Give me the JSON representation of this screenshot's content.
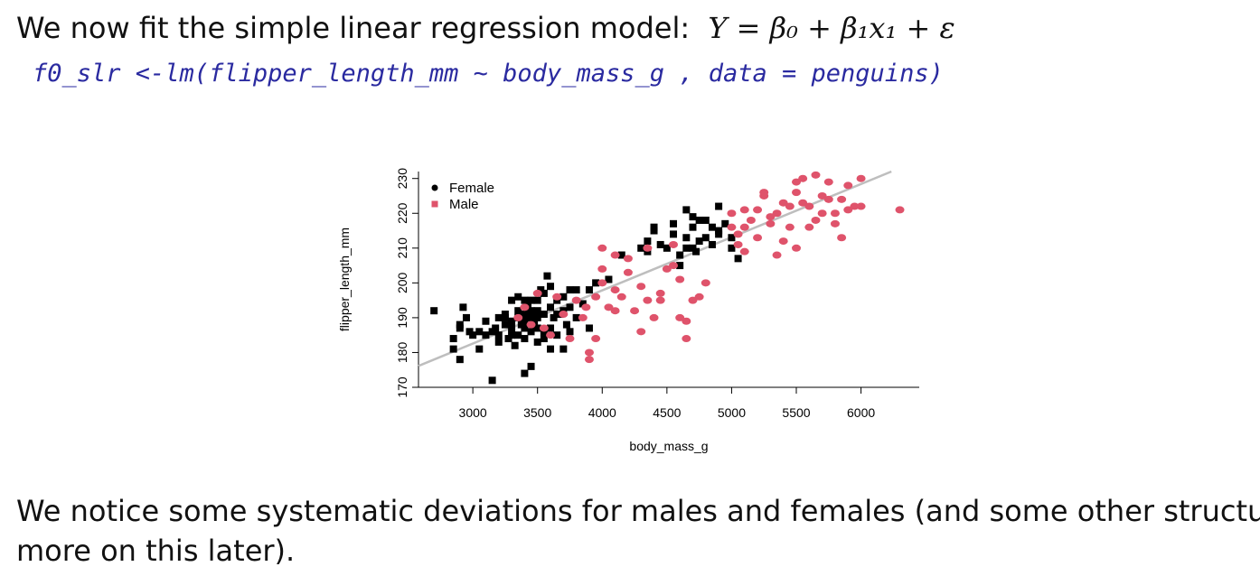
{
  "slide": {
    "heading": "We now fit the simple linear regression model:",
    "model_formula": "Y = β₀ + β₁x₁ + ε",
    "code": "f0_slr <-lm(flipper_length_mm ~ body_mass_g , data = penguins)",
    "footer_line1": "We notice some systematic deviations for males and females (and some other structure,",
    "footer_line2": "more on this later)."
  },
  "chart_data": {
    "type": "scatter",
    "xlabel": "body_mass_g",
    "ylabel": "flipper_length_mm",
    "xlim": [
      2580,
      6450
    ],
    "ylim": [
      170,
      232
    ],
    "xticks": [
      3000,
      3500,
      4000,
      4500,
      5000,
      5500,
      6000
    ],
    "yticks": [
      170,
      180,
      190,
      200,
      210,
      220,
      230
    ],
    "legend_position": "top-left",
    "grid": false,
    "series": [
      {
        "name": "Female",
        "marker": "square",
        "color": "#000000",
        "points": [
          [
            2700,
            192
          ],
          [
            2850,
            184
          ],
          [
            2850,
            181
          ],
          [
            2900,
            178
          ],
          [
            2900,
            188
          ],
          [
            2900,
            187
          ],
          [
            2925,
            193
          ],
          [
            2950,
            190
          ],
          [
            2975,
            186
          ],
          [
            3000,
            185
          ],
          [
            3050,
            186
          ],
          [
            3050,
            181
          ],
          [
            3100,
            189
          ],
          [
            3100,
            185
          ],
          [
            3150,
            172
          ],
          [
            3150,
            186
          ],
          [
            3175,
            187
          ],
          [
            3200,
            183
          ],
          [
            3200,
            190
          ],
          [
            3200,
            185
          ],
          [
            3250,
            191
          ],
          [
            3250,
            188
          ],
          [
            3275,
            184
          ],
          [
            3300,
            187
          ],
          [
            3300,
            195
          ],
          [
            3300,
            189
          ],
          [
            3325,
            182
          ],
          [
            3350,
            192
          ],
          [
            3350,
            190
          ],
          [
            3350,
            185
          ],
          [
            3375,
            188
          ],
          [
            3400,
            195
          ],
          [
            3400,
            191
          ],
          [
            3400,
            187
          ],
          [
            3400,
            184
          ],
          [
            3400,
            174
          ],
          [
            3425,
            193
          ],
          [
            3450,
            190
          ],
          [
            3450,
            186
          ],
          [
            3450,
            176
          ],
          [
            3475,
            188
          ],
          [
            3500,
            195
          ],
          [
            3500,
            192
          ],
          [
            3500,
            187
          ],
          [
            3500,
            183
          ],
          [
            3525,
            198
          ],
          [
            3550,
            191
          ],
          [
            3550,
            186
          ],
          [
            3575,
            202
          ],
          [
            3600,
            193
          ],
          [
            3600,
            187
          ],
          [
            3600,
            181
          ],
          [
            3625,
            190
          ],
          [
            3650,
            195
          ],
          [
            3650,
            185
          ],
          [
            3675,
            191
          ],
          [
            3700,
            196
          ],
          [
            3700,
            181
          ],
          [
            3725,
            188
          ],
          [
            3750,
            193
          ],
          [
            3750,
            186
          ],
          [
            3800,
            198
          ],
          [
            3800,
            190
          ],
          [
            3850,
            194
          ],
          [
            3900,
            187
          ],
          [
            3900,
            198
          ],
          [
            3950,
            200
          ],
          [
            4050,
            201
          ],
          [
            4150,
            208
          ],
          [
            4300,
            210
          ],
          [
            4350,
            209
          ],
          [
            4400,
            215
          ],
          [
            4450,
            211
          ],
          [
            4500,
            210
          ],
          [
            4550,
            214
          ],
          [
            4600,
            205
          ],
          [
            4650,
            213
          ],
          [
            4700,
            216
          ],
          [
            4700,
            210
          ],
          [
            4750,
            212
          ],
          [
            4800,
            218
          ],
          [
            4850,
            211
          ],
          [
            4900,
            215
          ],
          [
            4950,
            217
          ],
          [
            5000,
            210
          ],
          [
            5050,
            207
          ],
          [
            4650,
            221
          ],
          [
            4700,
            219
          ],
          [
            4800,
            213
          ],
          [
            4850,
            216
          ],
          [
            4900,
            222
          ],
          [
            4400,
            216
          ],
          [
            4550,
            217
          ],
          [
            4350,
            212
          ],
          [
            4750,
            218
          ],
          [
            4900,
            214
          ],
          [
            5000,
            213
          ],
          [
            4650,
            210
          ],
          [
            4725,
            209
          ],
          [
            4600,
            208
          ],
          [
            3550,
            197
          ],
          [
            3450,
            192
          ],
          [
            3650,
            191
          ],
          [
            3350,
            196
          ],
          [
            3700,
            192
          ],
          [
            3500,
            190
          ],
          [
            3250,
            190
          ],
          [
            3750,
            198
          ],
          [
            3300,
            185
          ],
          [
            3450,
            195
          ],
          [
            3600,
            199
          ],
          [
            3400,
            189
          ],
          [
            3550,
            184
          ]
        ]
      },
      {
        "name": "Male",
        "marker": "circle",
        "color": "#DF536B",
        "points": [
          [
            3350,
            190
          ],
          [
            3400,
            193
          ],
          [
            3450,
            188
          ],
          [
            3500,
            197
          ],
          [
            3550,
            187
          ],
          [
            3600,
            185
          ],
          [
            3650,
            196
          ],
          [
            3700,
            191
          ],
          [
            3750,
            184
          ],
          [
            3800,
            195
          ],
          [
            3850,
            190
          ],
          [
            3875,
            193
          ],
          [
            3900,
            178
          ],
          [
            3950,
            196
          ],
          [
            3950,
            184
          ],
          [
            4000,
            210
          ],
          [
            4000,
            204
          ],
          [
            4050,
            193
          ],
          [
            4100,
            208
          ],
          [
            4100,
            198
          ],
          [
            4150,
            196
          ],
          [
            4200,
            203
          ],
          [
            4250,
            192
          ],
          [
            4300,
            199
          ],
          [
            4350,
            195
          ],
          [
            4400,
            190
          ],
          [
            4450,
            197
          ],
          [
            4500,
            204
          ],
          [
            4550,
            205
          ],
          [
            4600,
            201
          ],
          [
            4650,
            189
          ],
          [
            4700,
            195
          ],
          [
            4750,
            196
          ],
          [
            4300,
            186
          ],
          [
            4600,
            190
          ],
          [
            4450,
            195
          ],
          [
            4650,
            184
          ],
          [
            4800,
            200
          ],
          [
            3900,
            180
          ],
          [
            4100,
            192
          ],
          [
            4000,
            200
          ],
          [
            4200,
            207
          ],
          [
            4350,
            210
          ],
          [
            4550,
            211
          ],
          [
            5000,
            216
          ],
          [
            5050,
            214
          ],
          [
            5100,
            221
          ],
          [
            5150,
            218
          ],
          [
            5200,
            221
          ],
          [
            5250,
            225
          ],
          [
            5300,
            219
          ],
          [
            5350,
            220
          ],
          [
            5400,
            223
          ],
          [
            5450,
            222
          ],
          [
            5500,
            229
          ],
          [
            5550,
            223
          ],
          [
            5600,
            222
          ],
          [
            5650,
            231
          ],
          [
            5700,
            225
          ],
          [
            5750,
            229
          ],
          [
            5800,
            220
          ],
          [
            5850,
            224
          ],
          [
            5900,
            228
          ],
          [
            5950,
            222
          ],
          [
            6000,
            230
          ],
          [
            6300,
            221
          ],
          [
            5000,
            220
          ],
          [
            5100,
            216
          ],
          [
            5200,
            213
          ],
          [
            5300,
            217
          ],
          [
            5400,
            212
          ],
          [
            5500,
            226
          ],
          [
            5600,
            216
          ],
          [
            5700,
            220
          ],
          [
            5800,
            217
          ],
          [
            5900,
            221
          ],
          [
            5100,
            209
          ],
          [
            5350,
            208
          ],
          [
            5500,
            210
          ],
          [
            5250,
            226
          ],
          [
            5450,
            216
          ],
          [
            5650,
            218
          ],
          [
            6000,
            222
          ],
          [
            5050,
            211
          ],
          [
            5550,
            230
          ],
          [
            5750,
            224
          ],
          [
            5850,
            213
          ]
        ]
      }
    ],
    "regression_line": {
      "color": "#BEBEBE",
      "intercept": 136.73,
      "slope": 0.01528
    }
  }
}
